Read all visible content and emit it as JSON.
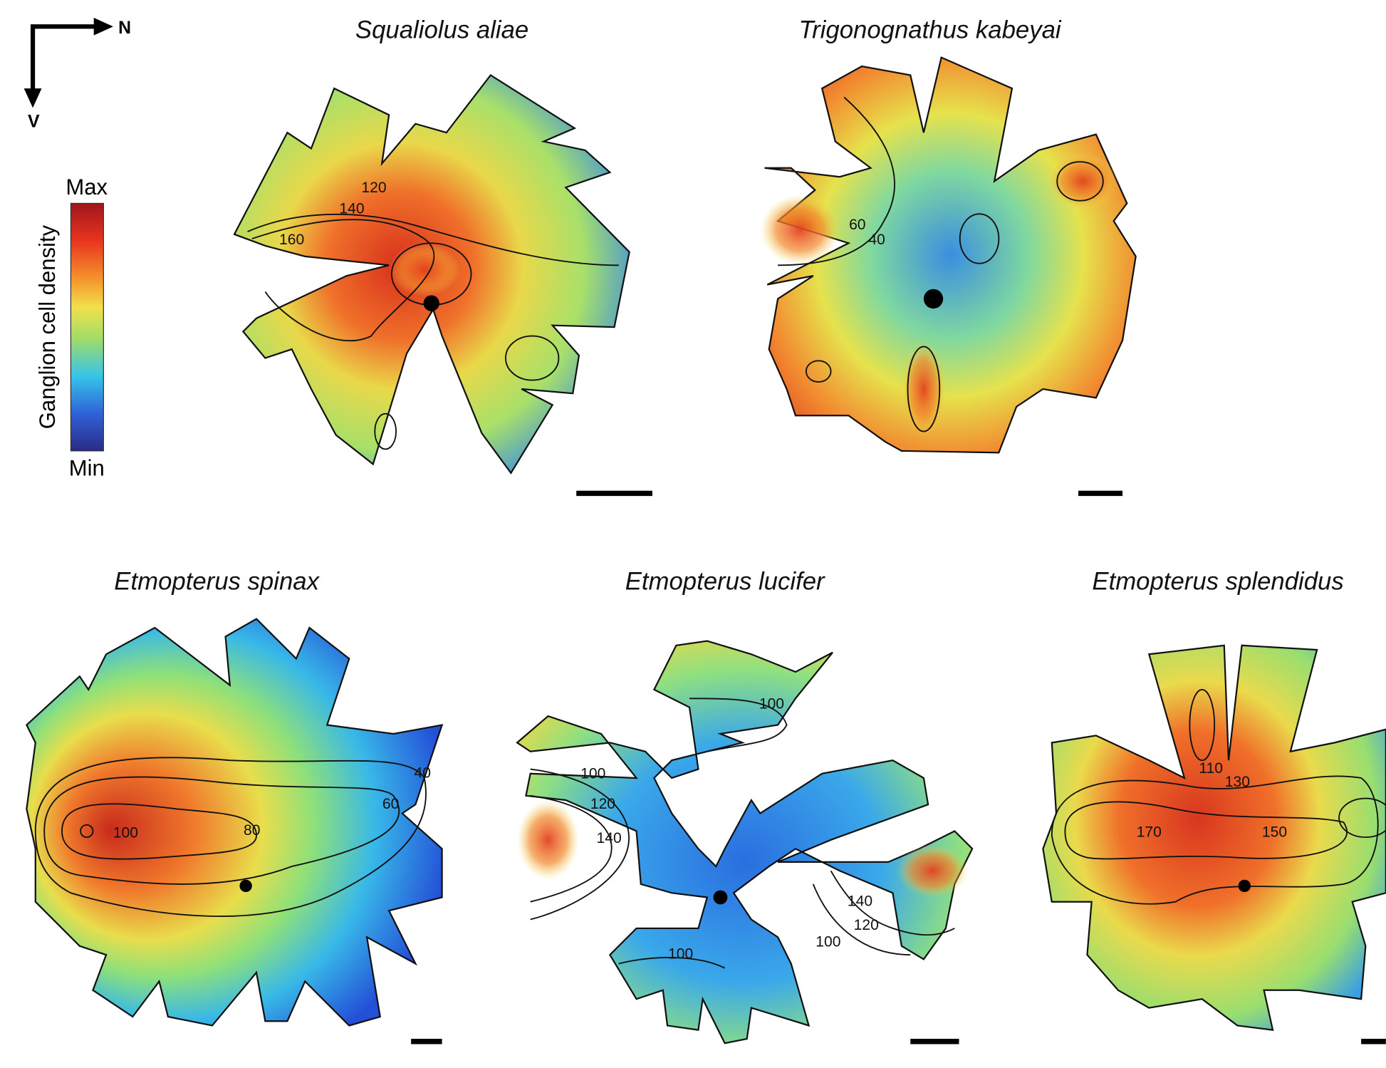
{
  "compass": {
    "north": "N",
    "ventral": "V"
  },
  "legend": {
    "title": "Ganglion cell density",
    "max": "Max",
    "min": "Min"
  },
  "panels": [
    {
      "title": "Squaliolus aliae",
      "contour_labels": [
        120,
        140,
        160
      ]
    },
    {
      "title": "Trigonognathus kabeyai",
      "contour_labels": [
        60,
        40
      ]
    },
    {
      "title": "Etmopterus spinax",
      "contour_labels": [
        100,
        80,
        60,
        40
      ]
    },
    {
      "title": "Etmopterus lucifer",
      "contour_labels": [
        100,
        100,
        120,
        140,
        140,
        120,
        100,
        100
      ]
    },
    {
      "title": "Etmopterus splendidus",
      "contour_labels": [
        110,
        130,
        170,
        150
      ]
    }
  ]
}
